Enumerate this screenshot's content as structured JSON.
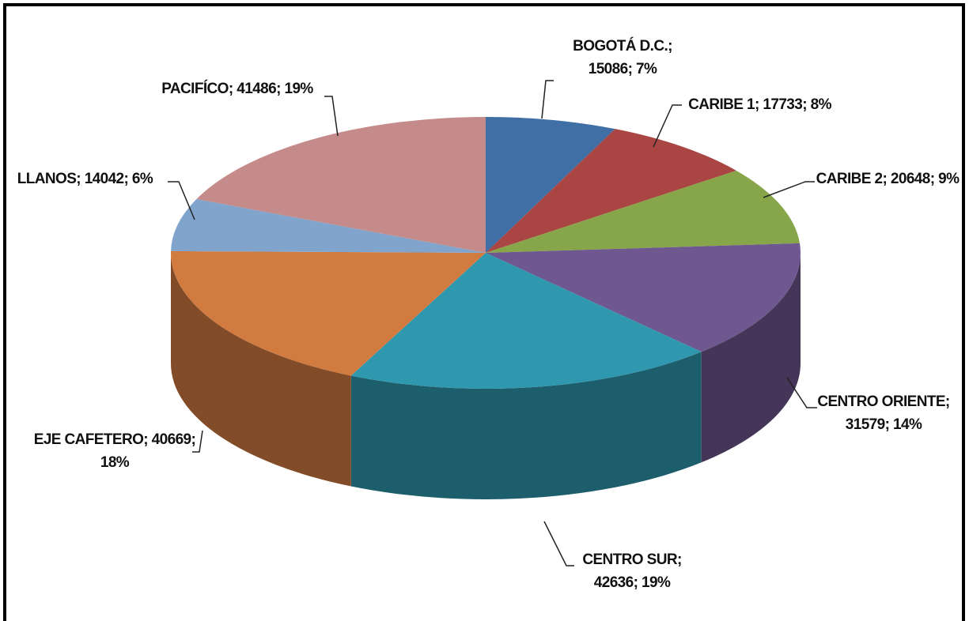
{
  "chart_data": {
    "type": "pie",
    "three_d": true,
    "values": [
      15086,
      17733,
      20648,
      31579,
      42636,
      40669,
      14042,
      41486
    ],
    "value_labels": [
      "BOGOTÁ D.C.; 15086; 7%",
      "CARIBE 1; 17733; 8%",
      "CARIBE 2; 20648; 9%",
      "CENTRO ORIENTE; 31579; 14%",
      "CENTRO SUR; 42636; 19%",
      "EJE CAFETERO; 40669; 18%",
      "LLANOS; 14042; 6%",
      "PACIFÍCO; 41486; 19%"
    ],
    "colors": [
      "#3f6fa5",
      "#a94543",
      "#87a64a",
      "#6f5790",
      "#2f97ae",
      "#d27b40",
      "#80a4cc",
      "#c58b8a"
    ]
  }
}
